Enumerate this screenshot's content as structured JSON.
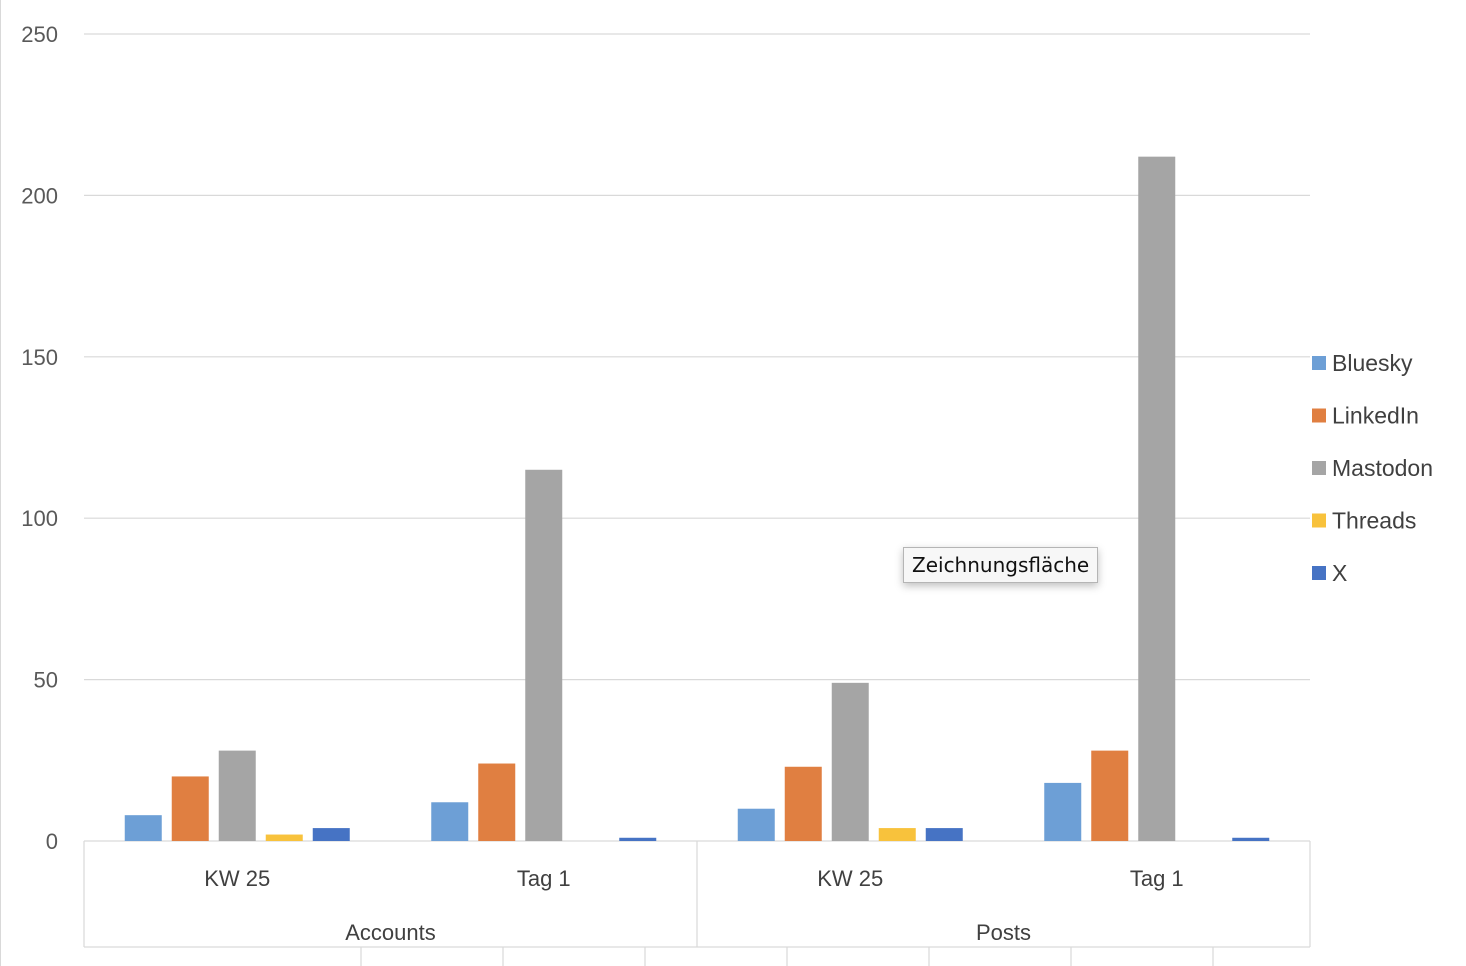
{
  "chart_data": {
    "type": "bar",
    "groups": [
      {
        "label": "Accounts",
        "categories": [
          "KW 25",
          "Tag 1"
        ]
      },
      {
        "label": "Posts",
        "categories": [
          "KW 25",
          "Tag 1"
        ]
      }
    ],
    "categories": [
      "KW 25",
      "Tag 1",
      "KW 25",
      "Tag 1"
    ],
    "series": [
      {
        "name": "Bluesky",
        "color": "#6d9fd6",
        "values": [
          8,
          12,
          10,
          18
        ]
      },
      {
        "name": "LinkedIn",
        "color": "#e07f41",
        "values": [
          20,
          24,
          23,
          28
        ]
      },
      {
        "name": "Mastodon",
        "color": "#a5a5a5",
        "values": [
          28,
          115,
          49,
          212
        ]
      },
      {
        "name": "Threads",
        "color": "#f8c23c",
        "values": [
          2,
          0,
          4,
          0
        ]
      },
      {
        "name": "X",
        "color": "#4673c4",
        "values": [
          4,
          1,
          4,
          1
        ]
      }
    ],
    "yticks": [
      "0",
      "50",
      "100",
      "150",
      "200",
      "250"
    ],
    "ylim": [
      0,
      250
    ],
    "grid": true,
    "legend": "right"
  },
  "tooltip": {
    "text": "Zeichnungsfläche"
  }
}
